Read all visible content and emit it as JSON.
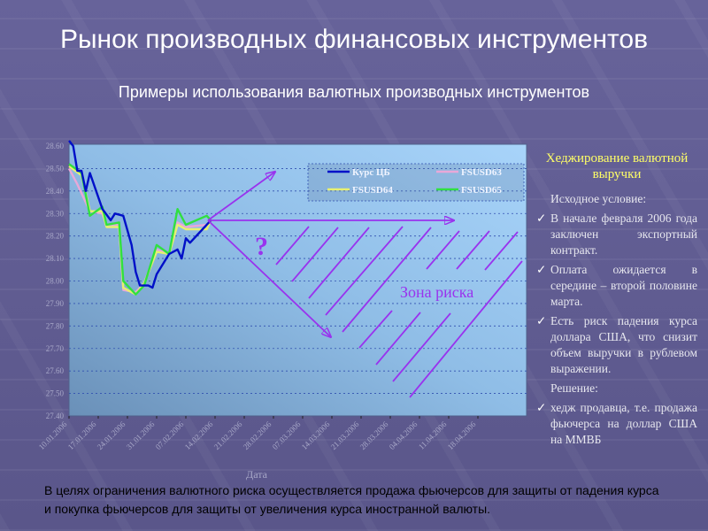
{
  "slide": {
    "title": "Рынок производных финансовых инструментов",
    "subtitle": "Примеры использования валютных производных инструментов",
    "bottom_text": "В целях ограничения валютного риска осуществляется продажа фьючерсов для защиты от падения курса и покупка фьючерсов для защиты от увеличения курса иностранной валюты."
  },
  "panel": {
    "heading": "Хеджирование валютной выручки",
    "condition_label": "Исходное условие:",
    "conditions": [
      "В начале февраля 2006 года заключен экспортный контракт.",
      "Оплата ожидается в середине – второй половине марта.",
      "Есть риск падения курса доллара США, что снизит объем выручки в рублевом выражении."
    ],
    "solution_label": "Решение:",
    "solutions": [
      "хедж продавца, т.е. продажа фьючерса на доллар США на ММВБ"
    ],
    "check_icon": "check-mark-icon"
  },
  "annotations": {
    "question": "?",
    "risk_zone": "Зона риска",
    "color": "#9933ee"
  },
  "chart_data": {
    "type": "line",
    "xlabel": "Дата",
    "ylabel": "",
    "ylim": [
      27.4,
      28.6
    ],
    "yticks": [
      "28.60",
      "28.50",
      "28.40",
      "28.30",
      "28.20",
      "28.10",
      "28.00",
      "27.90",
      "27.80",
      "27.70",
      "27.60",
      "27.50",
      "27.40"
    ],
    "xticks": [
      "10.01.2006",
      "17.01.2006",
      "24.01.2006",
      "31.01.2006",
      "07.02.2006",
      "14.02.2006",
      "21.02.2006",
      "28.02.2006",
      "07.03.2006",
      "14.03.2006",
      "21.03.2006",
      "28.03.2006",
      "04.04.2006",
      "11.04.2006",
      "18.04.2006"
    ],
    "grid": true,
    "legend_position": "top-right",
    "series": [
      {
        "name": "Курс ЦБ",
        "color": "#0010c8",
        "points": [
          [
            "2006-01-11",
            28.6
          ],
          [
            "2006-01-12",
            28.49
          ],
          [
            "2006-01-13",
            28.49
          ],
          [
            "2006-01-14",
            28.4
          ],
          [
            "2006-01-15",
            28.48
          ],
          [
            "2006-01-18",
            28.32
          ],
          [
            "2006-01-20",
            28.27
          ],
          [
            "2006-01-21",
            28.3
          ],
          [
            "2006-01-23",
            28.29
          ],
          [
            "2006-01-25",
            28.16
          ],
          [
            "2006-01-26",
            28.04
          ],
          [
            "2006-01-27",
            27.98
          ],
          [
            "2006-01-29",
            27.98
          ],
          [
            "2006-01-30",
            27.97
          ],
          [
            "2006-01-31",
            28.03
          ],
          [
            "2006-02-03",
            28.12
          ],
          [
            "2006-02-05",
            28.14
          ],
          [
            "2006-02-06",
            28.1
          ],
          [
            "2006-02-07",
            28.19
          ],
          [
            "2006-02-08",
            28.17
          ],
          [
            "2006-02-11",
            28.23
          ],
          [
            "2006-02-13",
            28.27
          ]
        ]
      },
      {
        "name": "FSUSD63",
        "color": "#e8a8d8",
        "points": [
          [
            "2006-01-10",
            28.5
          ],
          [
            "2006-01-12",
            28.43
          ],
          [
            "2006-01-15",
            28.31
          ],
          [
            "2006-01-18",
            28.3
          ],
          [
            "2006-01-19",
            28.25
          ],
          [
            "2006-01-22",
            28.25
          ],
          [
            "2006-01-23",
            27.96
          ],
          [
            "2006-01-26",
            27.95
          ],
          [
            "2006-01-28",
            27.99
          ],
          [
            "2006-01-31",
            28.14
          ],
          [
            "2006-02-03",
            28.12
          ],
          [
            "2006-02-05",
            28.26
          ],
          [
            "2006-02-07",
            28.24
          ],
          [
            "2006-02-12",
            28.25
          ],
          [
            "2006-02-13",
            28.27
          ]
        ]
      },
      {
        "name": "FSUSD64",
        "color": "#e8f070",
        "points": [
          [
            "2006-01-10",
            28.51
          ],
          [
            "2006-01-13",
            28.47
          ],
          [
            "2006-01-15",
            28.31
          ],
          [
            "2006-01-18",
            28.31
          ],
          [
            "2006-01-19",
            28.24
          ],
          [
            "2006-01-22",
            28.24
          ],
          [
            "2006-01-23",
            27.97
          ],
          [
            "2006-01-26",
            27.94
          ],
          [
            "2006-01-28",
            27.99
          ],
          [
            "2006-01-31",
            28.13
          ],
          [
            "2006-02-03",
            28.12
          ],
          [
            "2006-02-05",
            28.25
          ],
          [
            "2006-02-07",
            28.23
          ],
          [
            "2006-02-12",
            28.23
          ],
          [
            "2006-02-13",
            28.27
          ]
        ]
      },
      {
        "name": "FSUSD65",
        "color": "#30e040",
        "points": [
          [
            "2006-01-10",
            28.52
          ],
          [
            "2006-01-13",
            28.48
          ],
          [
            "2006-01-15",
            28.29
          ],
          [
            "2006-01-18",
            28.33
          ],
          [
            "2006-01-19",
            28.25
          ],
          [
            "2006-01-22",
            28.26
          ],
          [
            "2006-01-23",
            28.0
          ],
          [
            "2006-01-26",
            27.94
          ],
          [
            "2006-01-28",
            27.98
          ],
          [
            "2006-01-31",
            28.16
          ],
          [
            "2006-02-03",
            28.12
          ],
          [
            "2006-02-05",
            28.32
          ],
          [
            "2006-02-07",
            28.25
          ],
          [
            "2006-02-12",
            28.29
          ],
          [
            "2006-02-13",
            28.27
          ]
        ]
      }
    ]
  }
}
